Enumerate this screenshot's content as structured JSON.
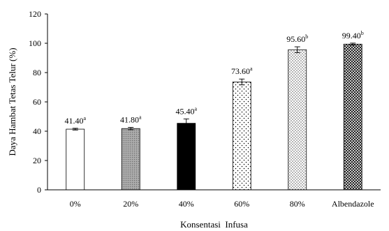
{
  "chart_data": {
    "type": "bar",
    "title": "",
    "xlabel": "Konsentasi  Infusa",
    "ylabel": "Daya Hambat Tetas Telur (%)",
    "ylim": [
      0,
      120
    ],
    "yticks": [
      0,
      20,
      40,
      60,
      80,
      100,
      120
    ],
    "grid": false,
    "legend": "none",
    "categories": [
      "0%",
      "20%",
      "40%",
      "60%",
      "80%",
      "Albendazole"
    ],
    "values": [
      41.4,
      41.8,
      45.4,
      73.6,
      95.6,
      99.4
    ],
    "errors": [
      0.6,
      0.8,
      3.0,
      2.0,
      2.0,
      0.7
    ],
    "labels": [
      "41.40",
      "41.80",
      "45.40",
      "73.60",
      "95.60",
      "99.40"
    ],
    "significance": [
      "a",
      "a",
      "a",
      "a",
      "b",
      "b"
    ],
    "bar_fills": [
      "white",
      "gray-dotted",
      "black",
      "sparse-dots",
      "dense-dots",
      "crosshatch"
    ],
    "colors": {
      "axis": "#000000",
      "black": "#000000",
      "gray": "#9a9a9a",
      "white": "#ffffff"
    }
  }
}
